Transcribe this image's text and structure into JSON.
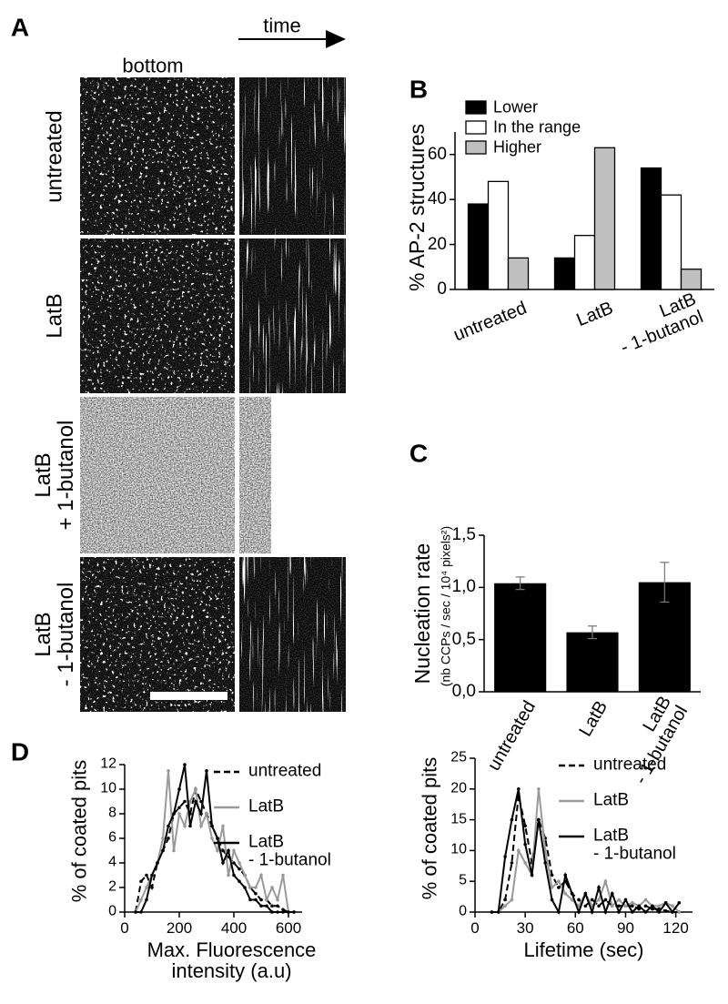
{
  "panel_labels": [
    "A",
    "B",
    "C",
    "D"
  ],
  "panel_a": {
    "column_labels": [
      "bottom",
      "time"
    ],
    "row_labels": [
      "untreated",
      "LatB",
      "LatB\n+ 1-butanol",
      "LatB\n- 1-butanol"
    ]
  },
  "chart_data": [
    {
      "type": "bar",
      "ylabel": "% AP-2 structures",
      "categories": [
        "untreated",
        "LatB",
        "LatB\n- 1-butanol"
      ],
      "series": [
        {
          "name": "Lower",
          "color": "#000000",
          "values": [
            38,
            14,
            54
          ]
        },
        {
          "name": "In the range",
          "color": "#ffffff",
          "values": [
            48,
            24,
            42
          ]
        },
        {
          "name": "Higher",
          "color": "#c0c0c0",
          "values": [
            14,
            63,
            9
          ]
        }
      ],
      "ylim": [
        0,
        70
      ],
      "yticks": [
        0,
        20,
        40,
        60
      ],
      "legend": "upper left"
    },
    {
      "type": "bar",
      "ylabel": "Nucleation rate",
      "ylabel_sub": "(nb CCPs / sec / 10⁴ pixels²)",
      "categories": [
        "untreated",
        "LatB",
        "LatB\n- 1-butanol"
      ],
      "values": [
        1.04,
        0.57,
        1.05
      ],
      "errors": [
        0.06,
        0.06,
        0.19
      ],
      "color": "#000000",
      "ylim": [
        0,
        1.5
      ],
      "yticks": [
        {
          "value": 0,
          "label": "0,0"
        },
        {
          "value": 0.5,
          "label": "0,5"
        },
        {
          "value": 1,
          "label": "1,0"
        },
        {
          "value": 1.5,
          "label": "1,5"
        }
      ]
    },
    {
      "type": "line",
      "ylabel": "% of coated pits",
      "xlabel": "Max. Fluorescence\nintensity (a.u)",
      "x": [
        40,
        60,
        80,
        100,
        120,
        140,
        160,
        180,
        200,
        220,
        240,
        260,
        280,
        300,
        320,
        340,
        360,
        380,
        400,
        420,
        440,
        460,
        480,
        500,
        520,
        540,
        560,
        580,
        600,
        620
      ],
      "series": [
        {
          "name": "untreated",
          "color": "#000000",
          "style": "dashed",
          "values": [
            0,
            2.5,
            3,
            2,
            4,
            5,
            6,
            8,
            8.5,
            9,
            8,
            10,
            9,
            8,
            7,
            6,
            5,
            4.5,
            4,
            3.5,
            3,
            2,
            1.5,
            1,
            1,
            0.5,
            0.5,
            0.2,
            0,
            0
          ]
        },
        {
          "name": "LatB",
          "color": "#999999",
          "style": "solid",
          "values": [
            0,
            1,
            2,
            3,
            4,
            6,
            11.5,
            5,
            8,
            7,
            9,
            10,
            7,
            8,
            6,
            5,
            7,
            3,
            5,
            4,
            3,
            2,
            2,
            3,
            1,
            2,
            1,
            3,
            0,
            0
          ]
        },
        {
          "name": "LatB\n- 1-butanol",
          "color": "#000000",
          "style": "solid",
          "values": [
            0,
            0,
            1,
            3,
            4,
            5,
            7,
            8,
            10,
            12,
            7,
            9,
            8,
            11.5,
            7,
            6,
            4,
            5,
            3,
            2.5,
            2,
            1,
            1,
            0.5,
            0.5,
            0,
            0,
            0,
            0,
            0
          ]
        }
      ],
      "xlim": [
        0,
        650
      ],
      "xticks": [
        0,
        200,
        400,
        600
      ],
      "ylim": [
        0,
        12
      ],
      "yticks": [
        0,
        2,
        4,
        6,
        8,
        10,
        12
      ],
      "legend": "upper right"
    },
    {
      "type": "line",
      "ylabel": "% of coated pits",
      "xlabel": "Lifetime (sec)",
      "x": [
        10,
        14,
        18,
        22,
        26,
        30,
        34,
        38,
        42,
        46,
        50,
        54,
        58,
        62,
        66,
        70,
        74,
        78,
        82,
        86,
        90,
        94,
        98,
        102,
        106,
        110,
        114,
        118,
        122
      ],
      "series": [
        {
          "name": "untreated",
          "color": "#000000",
          "style": "dashed",
          "values": [
            0,
            0,
            2,
            8,
            19,
            14,
            8,
            15,
            12,
            6,
            4,
            5,
            3,
            2,
            1,
            2,
            1,
            2,
            1,
            1,
            1,
            1,
            0.5,
            1,
            0.5,
            0.5,
            0.2,
            0,
            0
          ]
        },
        {
          "name": "LatB",
          "color": "#999999",
          "style": "solid",
          "values": [
            0,
            0,
            1,
            2,
            10,
            8,
            6,
            20,
            10,
            4,
            5,
            3,
            2,
            1,
            3,
            1,
            2,
            5,
            1,
            2,
            1,
            1.5,
            1,
            2,
            1,
            1,
            1.5,
            1,
            0
          ]
        },
        {
          "name": "LatB\n- 1-butanol",
          "color": "#000000",
          "style": "solid",
          "values": [
            0,
            0,
            9,
            15,
            20,
            11,
            6,
            15,
            8,
            2,
            0,
            6,
            3,
            0,
            3,
            0,
            4,
            0,
            3,
            0,
            2,
            0,
            1,
            0,
            1,
            0,
            1.5,
            0,
            1.5
          ]
        }
      ],
      "xlim": [
        0,
        130
      ],
      "xticks": [
        0,
        30,
        60,
        90,
        120
      ],
      "ylim": [
        0,
        25
      ],
      "yticks": [
        0,
        5,
        10,
        15,
        20,
        25
      ],
      "legend": "upper right"
    }
  ]
}
